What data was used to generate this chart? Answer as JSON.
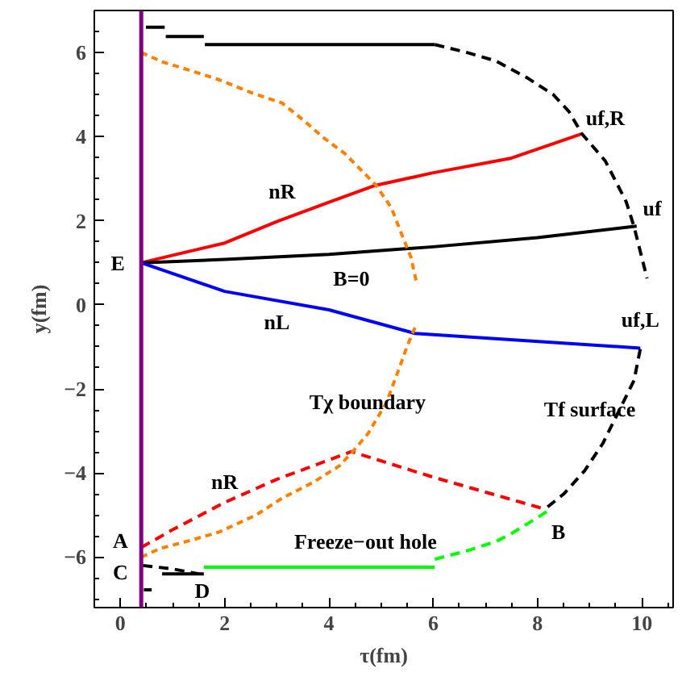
{
  "chart_data": {
    "type": "line",
    "xlabel": "τ(fm)",
    "ylabel": "y(fm)",
    "xlim": [
      -0.5,
      10.6
    ],
    "ylim": [
      -7.2,
      7.0
    ],
    "xticks": [
      0,
      2,
      4,
      6,
      8,
      10
    ],
    "yticks": [
      -6,
      -4,
      -2,
      0,
      2,
      4,
      6
    ],
    "grid": false,
    "marker": "none",
    "ref_lines": [
      {
        "axis": "x",
        "value": 0.4,
        "color": "#800080",
        "line_style": "solid"
      }
    ],
    "series": [
      {
        "color": "#ff0000",
        "line_style": "solid",
        "x": [
          0.4,
          2,
          3,
          4,
          4.86,
          6,
          7.5,
          8.86
        ],
        "values": [
          1,
          1.47,
          1.98,
          2.44,
          2.83,
          3.14,
          3.49,
          4.07
        ]
      },
      {
        "color": "#000000",
        "line_style": "solid",
        "x": [
          0.4,
          2,
          4,
          6,
          8,
          9.9
        ],
        "values": [
          1,
          1.08,
          1.2,
          1.38,
          1.6,
          1.87
        ]
      },
      {
        "color": "#0000ff",
        "line_style": "solid",
        "x": [
          0.4,
          2,
          4,
          5.65,
          9.97
        ],
        "values": [
          1,
          0.32,
          -0.12,
          -0.68,
          -1.03
        ]
      },
      {
        "color": "#ff0000",
        "line_style": "dashed",
        "x": [
          0.4,
          1,
          2,
          3,
          4.43,
          6,
          8.09
        ],
        "values": [
          -5.77,
          -5.35,
          -4.7,
          -4.15,
          -3.49,
          -4.1,
          -4.84
        ]
      },
      {
        "color": "#ff8000",
        "line_style": "dotted",
        "x": [
          0.4,
          0.8,
          1.35,
          1.9,
          2.5,
          3.1,
          3.5,
          3.9,
          4.3,
          4.9,
          5.2,
          5.4,
          5.57,
          5.67
        ],
        "values": [
          6.0,
          5.78,
          5.57,
          5.35,
          5.05,
          4.8,
          4.4,
          3.97,
          3.6,
          2.85,
          2.3,
          1.66,
          1.14,
          0.58
        ]
      },
      {
        "color": "#ff8000",
        "line_style": "dotted",
        "x": [
          0.4,
          0.75,
          1.35,
          1.9,
          2.6,
          3.1,
          3.7,
          4.2,
          4.45,
          4.75,
          5.1,
          5.35,
          5.5,
          5.65
        ],
        "values": [
          -6.0,
          -5.8,
          -5.6,
          -5.4,
          -5.0,
          -4.6,
          -4.22,
          -3.83,
          -3.5,
          -3.06,
          -2.33,
          -1.5,
          -0.98,
          -0.54
        ]
      },
      {
        "color": "#000000",
        "line_style": "solid",
        "x": [
          0.49,
          0.85,
          0.86,
          0.87,
          1.6,
          1.61,
          1.62,
          6.03
        ],
        "values": [
          6.6,
          6.6,
          null,
          6.38,
          6.38,
          null,
          6.19,
          6.19
        ]
      },
      {
        "color": "#000000",
        "line_style": "dashed",
        "x": [
          6.03,
          6.65,
          7.2,
          7.8,
          8.3,
          8.6,
          8.85,
          9.3,
          9.7,
          9.85,
          10.1
        ],
        "values": [
          6.19,
          6.0,
          5.8,
          5.4,
          5.0,
          4.6,
          4.07,
          3.42,
          2.45,
          1.86,
          0.63
        ]
      },
      {
        "color": "#000000",
        "line_style": "dashed",
        "x": [
          9.97,
          9.85,
          9.57,
          9.25,
          8.9,
          8.5,
          8.15
        ],
        "values": [
          -1.05,
          -1.8,
          -2.5,
          -3.3,
          -3.95,
          -4.5,
          -4.85
        ]
      },
      {
        "color": "#000000",
        "line_style": "solid",
        "x": [
          0.45,
          0.6,
          0.7,
          0.8,
          1.6
        ],
        "values": [
          -6.78,
          -6.78,
          null,
          -6.4,
          -6.4
        ]
      },
      {
        "color": "#000000",
        "line_style": "dashed",
        "x": [
          0.43,
          1.0,
          1.5
        ],
        "values": [
          -6.2,
          -6.28,
          -6.4
        ]
      },
      {
        "color": "#00ff00",
        "line_style": "solid",
        "x": [
          1.6,
          6.03
        ],
        "values": [
          -6.24,
          -6.24
        ]
      },
      {
        "color": "#00ff00",
        "line_style": "dashed",
        "x": [
          6.03,
          6.65,
          7.2,
          7.5,
          7.75,
          8.0,
          8.2
        ],
        "values": [
          -6.05,
          -5.85,
          -5.63,
          -5.44,
          -5.25,
          -5.06,
          -4.9
        ]
      }
    ],
    "annotations": [
      "E",
      "nR",
      "B=0",
      "nL",
      "uf,R",
      "uf",
      "uf,L",
      "Tχ boundary",
      "Tf surface",
      "nR",
      "A",
      "Freeze−out hole",
      "B",
      "C",
      "D"
    ]
  }
}
